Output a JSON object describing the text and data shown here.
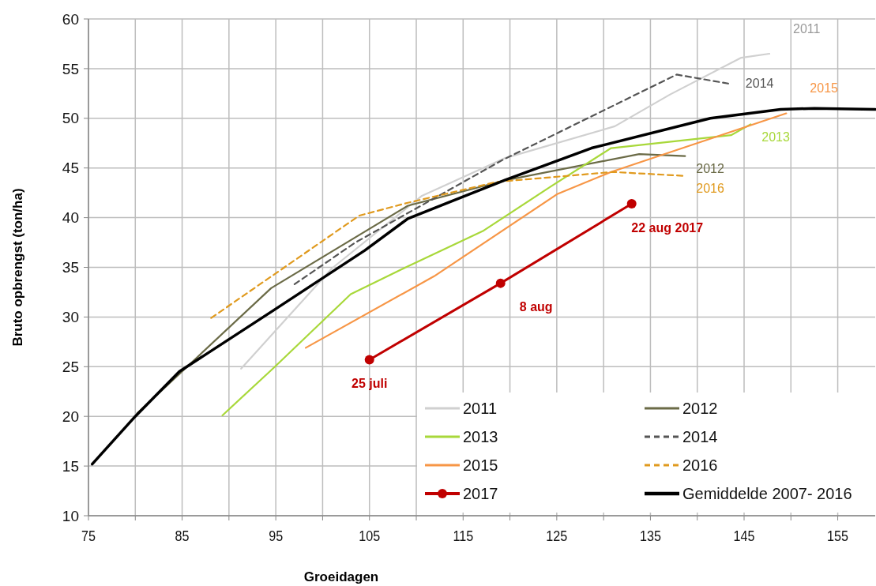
{
  "chart_data": {
    "type": "line",
    "xlabel": "Groeidagen",
    "ylabel": "Bruto opbrengst (ton/ha)",
    "xlim": [
      75,
      159
    ],
    "ylim": [
      10,
      60
    ],
    "xticks": [
      75,
      {
        "value": 80,
        "label": null
      },
      85,
      {
        "value": 90,
        "label": null
      },
      95,
      {
        "value": 100,
        "label": null
      },
      105,
      {
        "value": 110,
        "label": null
      },
      115,
      {
        "value": 120,
        "label": null
      },
      125,
      {
        "value": 130,
        "label": null
      },
      135,
      {
        "value": 140,
        "label": null
      },
      145,
      {
        "value": 150,
        "label": null
      },
      155
    ],
    "yticks": [
      10,
      15,
      20,
      25,
      30,
      35,
      40,
      45,
      50,
      55,
      60
    ],
    "grid": true,
    "legend": "bottom right",
    "series": [
      {
        "name": "2011",
        "color": "#d0d0d0",
        "x": [
          91.3,
          101,
          110.6,
          119.5,
          131.2,
          137.1,
          144.7,
          147.7
        ],
        "values": [
          24.8,
          34.9,
          42.2,
          46,
          49.2,
          52.4,
          56.1,
          56.5
        ]
      },
      {
        "name": "2012",
        "color": "#6b6b47",
        "x": [
          80.2,
          94.5,
          109.1,
          119.7,
          133.8,
          138.7
        ],
        "values": [
          20.3,
          32.9,
          41.2,
          43.8,
          46.4,
          46.2
        ]
      },
      {
        "name": "2013",
        "color": "#a8d83a",
        "x": [
          89.3,
          94.8,
          103,
          109.1,
          117.2,
          124.3,
          130.8,
          143.6,
          145.7
        ],
        "values": [
          20.1,
          24.9,
          32.3,
          35.1,
          38.7,
          43.1,
          47,
          48.3,
          49.4
        ]
      },
      {
        "name": "2014",
        "color": "#555555",
        "line_style": "dashed",
        "x": [
          97,
          103.5,
          119.2,
          137.8,
          143.3
        ],
        "values": [
          33.3,
          37.5,
          45.8,
          54.4,
          53.5
        ]
      },
      {
        "name": "2015",
        "color": "#f79646",
        "x": [
          98.2,
          111.9,
          125.1,
          130.8,
          149.5
        ],
        "values": [
          26.9,
          34.1,
          42.4,
          44.6,
          50.5
        ]
      },
      {
        "name": "2016",
        "color": "#e09a1e",
        "line_style": "dashed",
        "x": [
          88.1,
          103.9,
          109.1,
          118.6,
          131,
          138.7
        ],
        "values": [
          29.9,
          40.2,
          41.5,
          43.6,
          44.6,
          44.2
        ]
      },
      {
        "name": "2017",
        "color": "#c00000",
        "marker": "circle",
        "x": [
          105,
          119,
          133
        ],
        "values": [
          25.7,
          33.4,
          41.4
        ]
      },
      {
        "name": "Gemiddelde 2007- 2016",
        "color": "#000000",
        "x": [
          75.4,
          80,
          84.7,
          94.8,
          104.5,
          109.1,
          119.5,
          128.7,
          141.4,
          148.9,
          152.5,
          159
        ],
        "values": [
          15.2,
          20,
          24.5,
          30.7,
          36.7,
          39.9,
          43.8,
          47,
          50,
          50.9,
          51,
          50.9
        ]
      }
    ],
    "annotations": [
      "2011",
      "2014",
      "2015",
      "2013",
      "2012",
      "2016",
      {
        "text": "25 juli",
        "x": 105,
        "y": 25.7
      },
      {
        "text": "8 aug",
        "x": 119,
        "y": 33.4
      },
      {
        "text": "22 aug 2017",
        "x": 133,
        "y": 41.4
      }
    ]
  }
}
